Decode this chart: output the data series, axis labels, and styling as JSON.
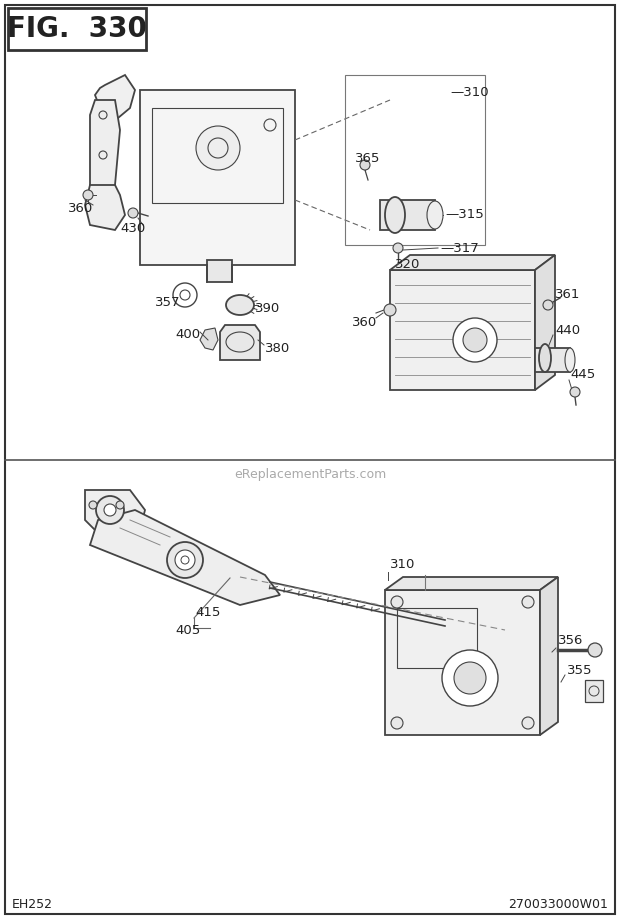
{
  "title": "FIG. 330",
  "footer_left": "EH252",
  "footer_right": "270033000W01",
  "watermark": "eReplacementParts.com",
  "bg_color": "#ffffff",
  "line_color": "#444444",
  "text_color": "#222222",
  "border_color": "#333333"
}
